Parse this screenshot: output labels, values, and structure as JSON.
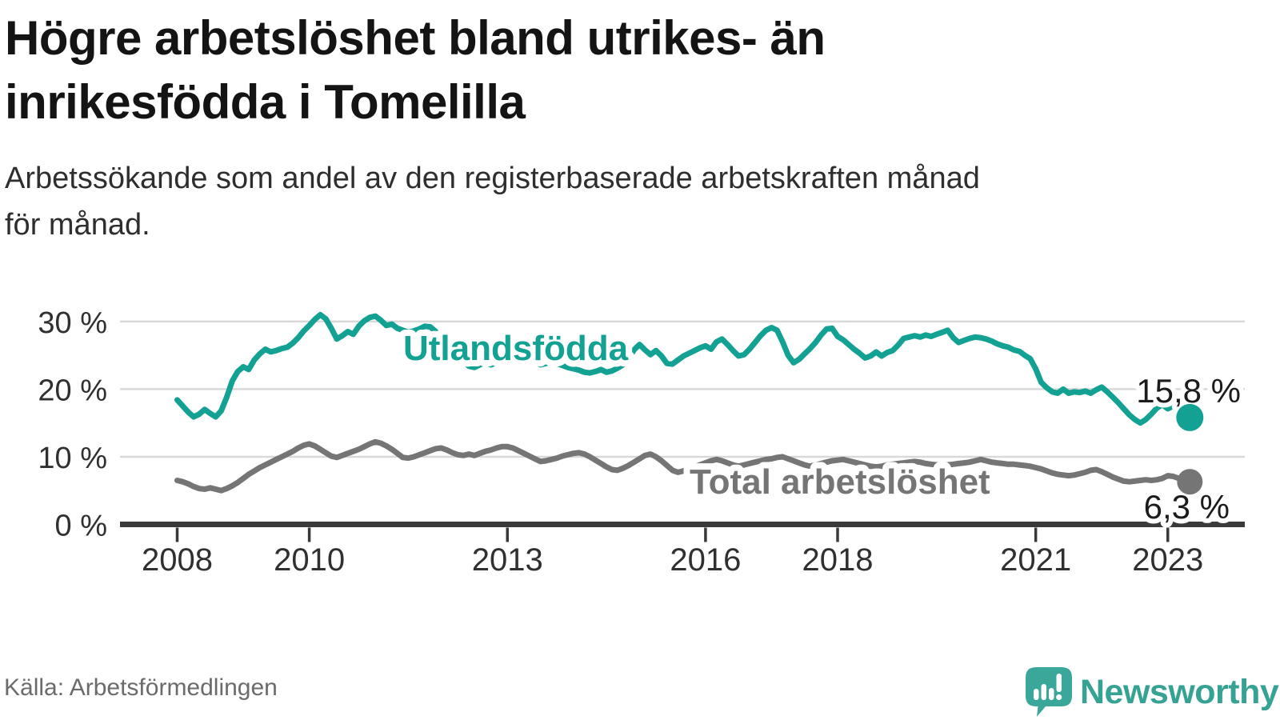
{
  "header": {
    "title_line1": "Högre arbetslöshet bland utrikes- än",
    "title_line2": "inrikesfödda i Tomelilla",
    "subtitle_line1": "Arbetssökande som andel av den registerbaserade arbetskraften månad",
    "subtitle_line2": "för månad."
  },
  "footer": {
    "source": "Källa: Arbetsförmedlingen",
    "brand": "Newsworthy"
  },
  "colors": {
    "utlandsfodda": "#12a192",
    "total": "#757575",
    "axis": "#3a3a3a",
    "grid": "#d9d9d9",
    "logo_teal": "#35a294"
  },
  "chart_data": {
    "type": "line",
    "x_unit": "month",
    "x_start": "2008-01",
    "x_end": "2023-05",
    "x_ticks": [
      "2008",
      "2010",
      "2013",
      "2016",
      "2018",
      "2021",
      "2023"
    ],
    "y_ticks": [
      "0 %",
      "10 %",
      "20 %",
      "30 %"
    ],
    "y_tick_values": [
      0,
      10,
      20,
      30
    ],
    "ylim": [
      0,
      33
    ],
    "grid": "horizontal",
    "legend_position": "inline-labels",
    "series": [
      {
        "name": "Utlandsfödda",
        "color": "#12a192",
        "end_label": "15,8 %",
        "end_value": 15.8,
        "values": [
          18.4,
          17.5,
          16.6,
          15.9,
          16.3,
          17.0,
          16.4,
          15.9,
          16.8,
          18.8,
          21.2,
          22.6,
          23.3,
          22.9,
          24.3,
          25.2,
          25.9,
          25.5,
          25.7,
          26.0,
          26.2,
          26.8,
          27.6,
          28.6,
          29.4,
          30.3,
          31.0,
          30.4,
          29.0,
          27.4,
          27.9,
          28.5,
          28.1,
          29.3,
          30.1,
          30.6,
          30.8,
          30.2,
          29.4,
          29.6,
          29.0,
          28.7,
          28.4,
          28.6,
          28.9,
          29.3,
          29.2,
          28.5,
          27.6,
          26.7,
          25.8,
          24.9,
          24.1,
          23.4,
          23.2,
          23.6,
          24.0,
          23.6,
          23.9,
          24.3,
          24.6,
          24.9,
          25.1,
          24.7,
          24.3,
          23.9,
          23.6,
          23.8,
          24.1,
          23.8,
          23.5,
          23.2,
          23.0,
          22.8,
          22.5,
          22.4,
          22.6,
          22.9,
          22.5,
          22.7,
          23.1,
          23.6,
          24.5,
          25.8,
          26.6,
          25.8,
          25.1,
          25.7,
          24.9,
          23.8,
          23.7,
          24.3,
          24.9,
          25.3,
          25.7,
          26.1,
          26.4,
          25.9,
          27.0,
          27.4,
          26.6,
          25.7,
          24.9,
          25.1,
          25.9,
          26.9,
          27.9,
          28.7,
          29.1,
          28.7,
          27.0,
          25.0,
          23.9,
          24.4,
          25.2,
          26.0,
          26.9,
          28.0,
          28.9,
          29.0,
          27.8,
          27.3,
          26.6,
          25.9,
          25.3,
          24.6,
          24.9,
          25.5,
          24.9,
          25.4,
          25.7,
          26.5,
          27.5,
          27.7,
          27.9,
          27.7,
          28.0,
          27.8,
          28.1,
          28.4,
          28.7,
          27.6,
          26.9,
          27.2,
          27.5,
          27.7,
          27.6,
          27.4,
          27.1,
          26.7,
          26.4,
          26.2,
          25.8,
          25.6,
          25.0,
          24.5,
          23.0,
          21.0,
          20.2,
          19.6,
          19.4,
          20.0,
          19.4,
          19.6,
          19.5,
          19.7,
          19.4,
          19.9,
          20.3,
          19.6,
          18.8,
          18.0,
          17.1,
          16.2,
          15.5,
          15.0,
          15.5,
          16.3,
          17.2,
          17.7,
          17.1,
          17.5,
          17.2,
          16.5,
          15.8
        ]
      },
      {
        "name": "Total arbetslöshet",
        "color": "#757575",
        "end_label": "6,3 %",
        "end_value": 6.3,
        "values": [
          6.5,
          6.3,
          6.0,
          5.6,
          5.3,
          5.2,
          5.4,
          5.2,
          5.0,
          5.3,
          5.7,
          6.2,
          6.8,
          7.4,
          7.9,
          8.4,
          8.8,
          9.2,
          9.6,
          10.0,
          10.4,
          10.8,
          11.3,
          11.7,
          11.9,
          11.6,
          11.1,
          10.6,
          10.1,
          9.9,
          10.2,
          10.5,
          10.8,
          11.1,
          11.5,
          11.9,
          12.2,
          12.0,
          11.6,
          11.1,
          10.5,
          9.9,
          9.8,
          10.0,
          10.3,
          10.6,
          10.9,
          11.2,
          11.3,
          11.0,
          10.6,
          10.3,
          10.2,
          10.4,
          10.2,
          10.5,
          10.8,
          11.0,
          11.3,
          11.5,
          11.5,
          11.3,
          10.9,
          10.5,
          10.1,
          9.7,
          9.3,
          9.4,
          9.6,
          9.8,
          10.1,
          10.3,
          10.5,
          10.6,
          10.4,
          10.0,
          9.5,
          9.0,
          8.5,
          8.1,
          8.0,
          8.3,
          8.7,
          9.2,
          9.7,
          10.2,
          10.4,
          10.0,
          9.4,
          8.7,
          8.0,
          7.7,
          7.9,
          8.2,
          8.5,
          8.8,
          9.1,
          9.4,
          9.6,
          9.4,
          9.1,
          8.8,
          8.6,
          8.8,
          9.0,
          9.2,
          9.4,
          9.6,
          9.7,
          9.9,
          10.0,
          9.7,
          9.4,
          9.1,
          8.8,
          8.6,
          8.8,
          9.0,
          9.2,
          9.4,
          9.5,
          9.6,
          9.4,
          9.2,
          9.0,
          8.8,
          8.6,
          8.5,
          8.6,
          8.8,
          8.9,
          9.0,
          9.1,
          9.2,
          9.3,
          9.2,
          9.0,
          8.9,
          8.8,
          8.7,
          8.8,
          8.9,
          9.0,
          9.1,
          9.2,
          9.4,
          9.6,
          9.4,
          9.2,
          9.1,
          9.0,
          8.9,
          8.9,
          8.8,
          8.7,
          8.6,
          8.4,
          8.2,
          7.9,
          7.6,
          7.4,
          7.3,
          7.2,
          7.3,
          7.5,
          7.7,
          8.0,
          8.1,
          7.8,
          7.4,
          7.0,
          6.7,
          6.4,
          6.3,
          6.4,
          6.5,
          6.6,
          6.5,
          6.6,
          6.8,
          7.2,
          7.1,
          6.8,
          6.1,
          6.3
        ]
      }
    ]
  }
}
